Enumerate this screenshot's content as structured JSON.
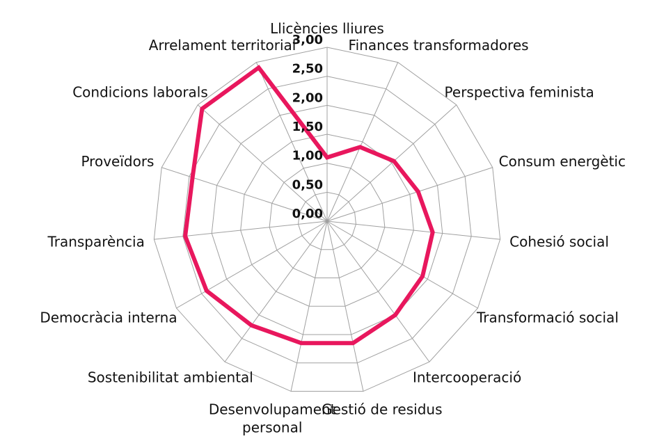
{
  "chart_data": {
    "type": "radar",
    "categories": [
      "Llicències lliures",
      "Finances transformadores",
      "Perspectiva feminista",
      "Consum energètic",
      "Cohesió social",
      "Transformació social",
      "Intercooperació",
      "Gestió de residus",
      "Desenvolupament personal",
      "Sostenibilitat ambiental",
      "Democràcia interna",
      "Transparència",
      "Proveïdors",
      "Condicions laborals",
      "Arrelament territorial"
    ],
    "values": [
      1.1,
      1.4,
      1.55,
      1.65,
      1.83,
      1.9,
      2.0,
      2.15,
      2.15,
      2.22,
      2.4,
      2.46,
      2.44,
      2.9,
      2.9
    ],
    "color": "#e8175d",
    "ylim": [
      0,
      3
    ],
    "yticks": [
      {
        "value": 0,
        "label": "0,00"
      },
      {
        "value": 0.5,
        "label": "0,50"
      },
      {
        "value": 1,
        "label": "1,00"
      },
      {
        "value": 1.5,
        "label": "1,50"
      },
      {
        "value": 2,
        "label": "2,00"
      },
      {
        "value": 2.5,
        "label": "2,50"
      },
      {
        "value": 3,
        "label": "3,00"
      }
    ],
    "grid": true
  }
}
